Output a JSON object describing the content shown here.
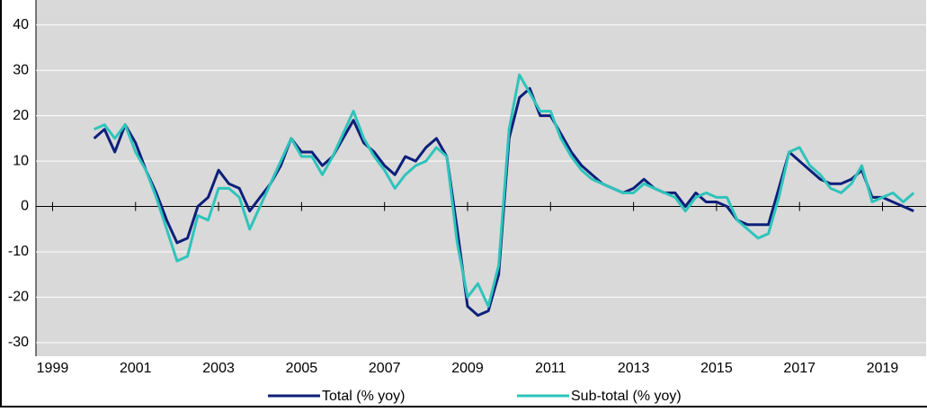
{
  "chart_data": {
    "type": "line",
    "x": [
      2000,
      2000.25,
      2000.5,
      2000.75,
      2001,
      2001.25,
      2001.5,
      2001.75,
      2002,
      2002.25,
      2002.5,
      2002.75,
      2003,
      2003.25,
      2003.5,
      2003.75,
      2004,
      2004.25,
      2004.5,
      2004.75,
      2005,
      2005.25,
      2005.5,
      2005.75,
      2006,
      2006.25,
      2006.5,
      2006.75,
      2007,
      2007.25,
      2007.5,
      2007.75,
      2008,
      2008.25,
      2008.5,
      2008.75,
      2009,
      2009.25,
      2009.5,
      2009.75,
      2010,
      2010.25,
      2010.5,
      2010.75,
      2011,
      2011.25,
      2011.5,
      2011.75,
      2012,
      2012.25,
      2012.5,
      2012.75,
      2013,
      2013.25,
      2013.5,
      2013.75,
      2014,
      2014.25,
      2014.5,
      2014.75,
      2015,
      2015.25,
      2015.5,
      2015.75,
      2016,
      2016.25,
      2016.5,
      2016.75,
      2017,
      2017.25,
      2017.5,
      2017.75,
      2018,
      2018.25,
      2018.5,
      2018.75,
      2019,
      2019.25,
      2019.5,
      2019.75
    ],
    "series": [
      {
        "name": "Total (% yoy)",
        "color": "#0d1f7a",
        "values": [
          15,
          17,
          12,
          18,
          14,
          8,
          3,
          -3,
          -8,
          -7,
          0,
          2,
          8,
          5,
          4,
          -1,
          2,
          5,
          9,
          15,
          12,
          12,
          9,
          11,
          15,
          19,
          14,
          12,
          9,
          7,
          11,
          10,
          13,
          15,
          11,
          -5,
          -22,
          -24,
          -23,
          -15,
          15,
          24,
          26,
          20,
          20,
          16,
          12,
          9,
          7,
          5,
          4,
          3,
          4,
          6,
          4,
          3,
          3,
          0,
          3,
          1,
          1,
          0,
          -3,
          -4,
          -4,
          -4,
          4,
          12,
          10,
          8,
          6,
          5,
          5,
          6,
          8,
          2,
          2,
          1,
          0,
          -1
        ]
      },
      {
        "name": "Sub-total (% yoy)",
        "color": "#2ec4bb",
        "values": [
          17,
          18,
          15,
          18,
          12,
          8,
          2,
          -5,
          -12,
          -11,
          -2,
          -3,
          4,
          4,
          2,
          -5,
          0,
          5,
          10,
          15,
          11,
          11,
          7,
          11,
          16,
          21,
          15,
          11,
          8,
          4,
          7,
          9,
          10,
          13,
          11,
          -8,
          -20,
          -17,
          -22,
          -13,
          17,
          29,
          25,
          21,
          21,
          15,
          11,
          8,
          6,
          5,
          4,
          3,
          3,
          5,
          4,
          3,
          2,
          -1,
          2,
          3,
          2,
          2,
          -3,
          -5,
          -7,
          -6,
          2,
          12,
          13,
          9,
          7,
          4,
          3,
          5,
          9,
          1,
          2,
          3,
          1,
          3
        ]
      }
    ],
    "xlim": [
      1998.6,
      2020.05
    ],
    "xticks": [
      1999,
      2001,
      2003,
      2005,
      2007,
      2009,
      2011,
      2013,
      2015,
      2017,
      2019
    ],
    "ylim": [
      -33,
      45.5
    ],
    "yticks": [
      -30,
      -20,
      -10,
      0,
      10,
      20,
      30,
      40
    ],
    "grid": true,
    "legend": "bottom"
  }
}
